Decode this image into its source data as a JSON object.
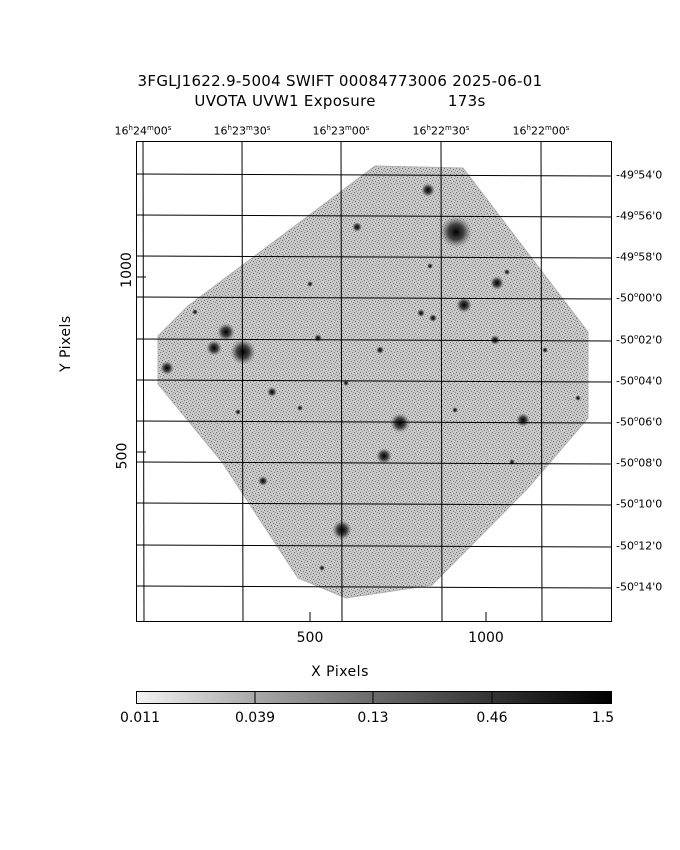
{
  "title": {
    "line1": "3FGLJ1622.9-5004 SWIFT 00084773006 2025-06-01",
    "line2_left": "UVOTA UVW1 Exposure",
    "line2_right": "173s"
  },
  "ra_labels": [
    {
      "h": "16",
      "m": "24",
      "s": "00"
    },
    {
      "h": "16",
      "m": "23",
      "s": "30"
    },
    {
      "h": "16",
      "m": "23",
      "s": "00"
    },
    {
      "h": "16",
      "m": "22",
      "s": "30"
    },
    {
      "h": "16",
      "m": "22",
      "s": "00"
    }
  ],
  "dec_labels": [
    {
      "d": "-49",
      "m": "54",
      "s": "0"
    },
    {
      "d": "-49",
      "m": "56",
      "s": "0"
    },
    {
      "d": "-49",
      "m": "58",
      "s": "0"
    },
    {
      "d": "-50",
      "m": "00",
      "s": "0"
    },
    {
      "d": "-50",
      "m": "02",
      "s": "0"
    },
    {
      "d": "-50",
      "m": "04",
      "s": "0"
    },
    {
      "d": "-50",
      "m": "06",
      "s": "0"
    },
    {
      "d": "-50",
      "m": "08",
      "s": "0"
    },
    {
      "d": "-50",
      "m": "10",
      "s": "0"
    },
    {
      "d": "-50",
      "m": "12",
      "s": "0"
    },
    {
      "d": "-50",
      "m": "14",
      "s": "0"
    }
  ],
  "x_axis": {
    "label": "X Pixels",
    "ticks": [
      "500",
      "1000"
    ]
  },
  "y_axis": {
    "label": "Y Pixels",
    "ticks": [
      "1000",
      "500"
    ]
  },
  "colorbar": {
    "ticks": [
      "0.011",
      "0.039",
      "0.13",
      "0.46",
      "1.5"
    ]
  },
  "colors": {
    "frame": "#000000",
    "image": "#9a9a9a",
    "background": "#ffffff"
  }
}
